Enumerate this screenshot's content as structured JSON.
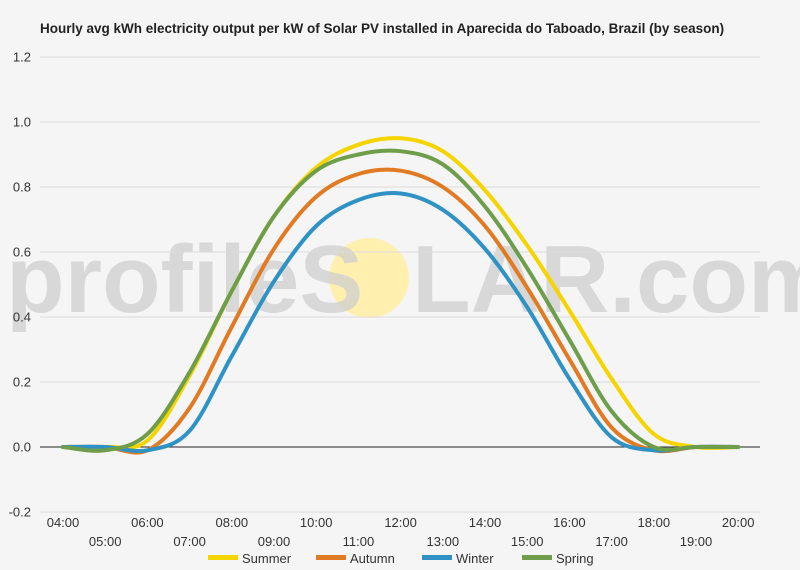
{
  "chart_data": {
    "type": "line",
    "title": "Hourly avg kWh electricity output per kW of Solar PV installed in Aparecida do Taboado, Brazil (by season)",
    "xlabel": "",
    "ylabel": "",
    "x": [
      "04:00",
      "05:00",
      "06:00",
      "07:00",
      "08:00",
      "09:00",
      "10:00",
      "11:00",
      "12:00",
      "13:00",
      "14:00",
      "15:00",
      "16:00",
      "17:00",
      "18:00",
      "19:00",
      "20:00"
    ],
    "ylim": [
      -0.2,
      1.2
    ],
    "yticks": [
      "-0.2",
      "0.0",
      "0.2",
      "0.4",
      "0.6",
      "0.8",
      "1.0",
      "1.2"
    ],
    "grid": true,
    "legend_position": "bottom",
    "series": [
      {
        "name": "Summer",
        "color": "#f5d400",
        "values": [
          0.0,
          0.0,
          0.02,
          0.22,
          0.48,
          0.71,
          0.86,
          0.93,
          0.95,
          0.91,
          0.79,
          0.62,
          0.42,
          0.21,
          0.04,
          0.0,
          0.0
        ]
      },
      {
        "name": "Autumn",
        "color": "#e07b24",
        "values": [
          0.0,
          0.0,
          -0.01,
          0.12,
          0.37,
          0.61,
          0.77,
          0.84,
          0.85,
          0.8,
          0.68,
          0.49,
          0.27,
          0.06,
          -0.01,
          0.0,
          0.0
        ]
      },
      {
        "name": "Winter",
        "color": "#2f92c4",
        "values": [
          0.0,
          0.0,
          -0.01,
          0.05,
          0.28,
          0.51,
          0.68,
          0.76,
          0.78,
          0.73,
          0.61,
          0.43,
          0.21,
          0.03,
          -0.01,
          0.0,
          0.0
        ]
      },
      {
        "name": "Spring",
        "color": "#6e9e4a",
        "values": [
          0.0,
          -0.01,
          0.04,
          0.23,
          0.48,
          0.71,
          0.85,
          0.9,
          0.91,
          0.87,
          0.74,
          0.55,
          0.33,
          0.11,
          0.0,
          0.0,
          0.0
        ]
      }
    ]
  },
  "watermark": {
    "left_text": "profileS",
    "right_text": "LAR.com",
    "sun_color": "#fff0b0"
  }
}
